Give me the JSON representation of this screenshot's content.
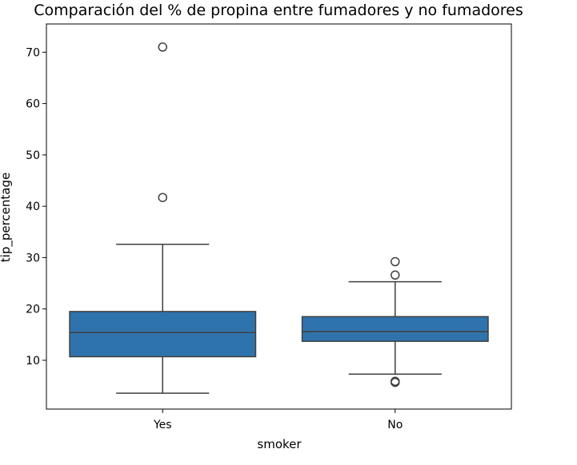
{
  "chart_data": {
    "type": "box",
    "title": "Comparación del % de propina entre fumadores y no fumadores",
    "xlabel": "smoker",
    "ylabel": "tip_percentage",
    "categories": [
      "Yes",
      "No"
    ],
    "ylim": [
      0.5,
      75.5
    ],
    "yticks": [
      10,
      20,
      30,
      40,
      50,
      60,
      70
    ],
    "grid": false,
    "legend": "none",
    "colors": {
      "box_fill": "#2f73ad",
      "line": "#3f3f3f",
      "frame": "#000000"
    },
    "boxes": [
      {
        "category": "Yes",
        "whisker_low": 3.6,
        "q1": 10.7,
        "median": 15.4,
        "q3": 19.5,
        "whisker_high": 32.6,
        "outliers": [
          41.7,
          71.0
        ]
      },
      {
        "category": "No",
        "whisker_low": 7.3,
        "q1": 13.7,
        "median": 15.6,
        "q3": 18.5,
        "whisker_high": 25.3,
        "outliers": [
          5.7,
          5.9,
          26.6,
          29.2
        ]
      }
    ]
  }
}
